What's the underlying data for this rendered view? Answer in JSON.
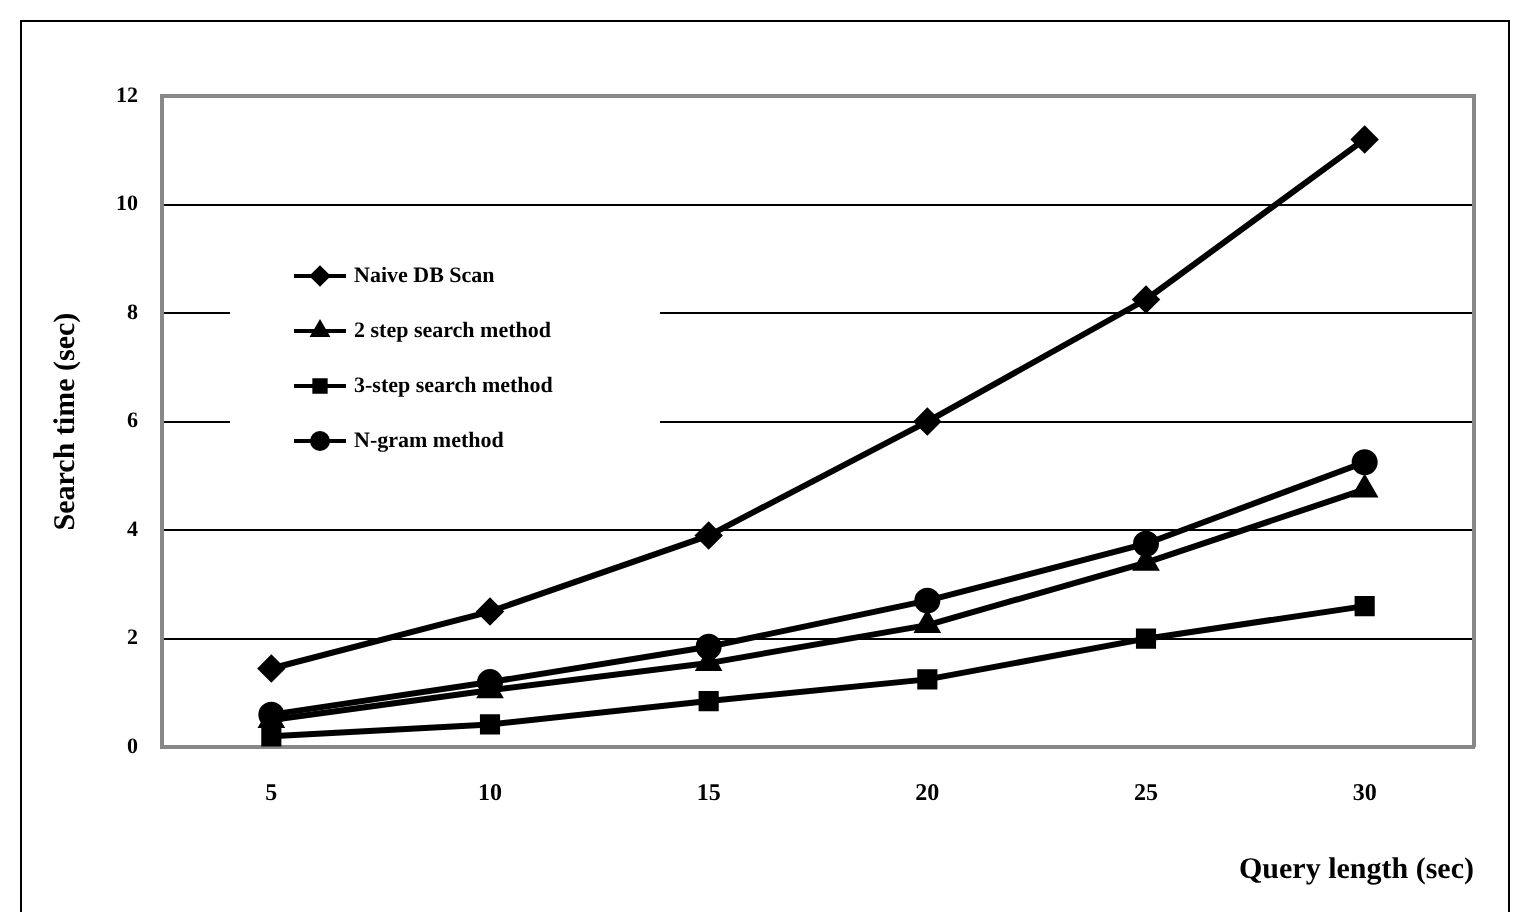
{
  "chart_data": {
    "type": "line",
    "xlabel": "Query length (sec)",
    "ylabel": "Search time (sec)",
    "categories": [
      "5",
      "10",
      "15",
      "20",
      "25",
      "30"
    ],
    "series": [
      {
        "name": "Naive DB Scan",
        "color": "#000000",
        "marker": "diamond",
        "values": [
          1.45,
          2.5,
          3.9,
          6.0,
          8.25,
          11.2
        ]
      },
      {
        "name": "2 step search method",
        "color": "#000000",
        "marker": "triangle",
        "values": [
          0.5,
          1.05,
          1.55,
          2.25,
          3.4,
          4.75
        ]
      },
      {
        "name": "3-step search method",
        "color": "#000000",
        "marker": "square",
        "values": [
          0.2,
          0.42,
          0.85,
          1.25,
          2.0,
          2.6
        ]
      },
      {
        "name": "N-gram method",
        "color": "#000000",
        "marker": "circle",
        "values": [
          0.6,
          1.2,
          1.85,
          2.7,
          3.75,
          5.25
        ]
      }
    ],
    "ylim": [
      0,
      12
    ],
    "yticks": [
      0,
      2,
      4,
      6,
      8,
      10,
      12
    ],
    "grid": "y",
    "legend": "top left",
    "line_style": "solid"
  }
}
